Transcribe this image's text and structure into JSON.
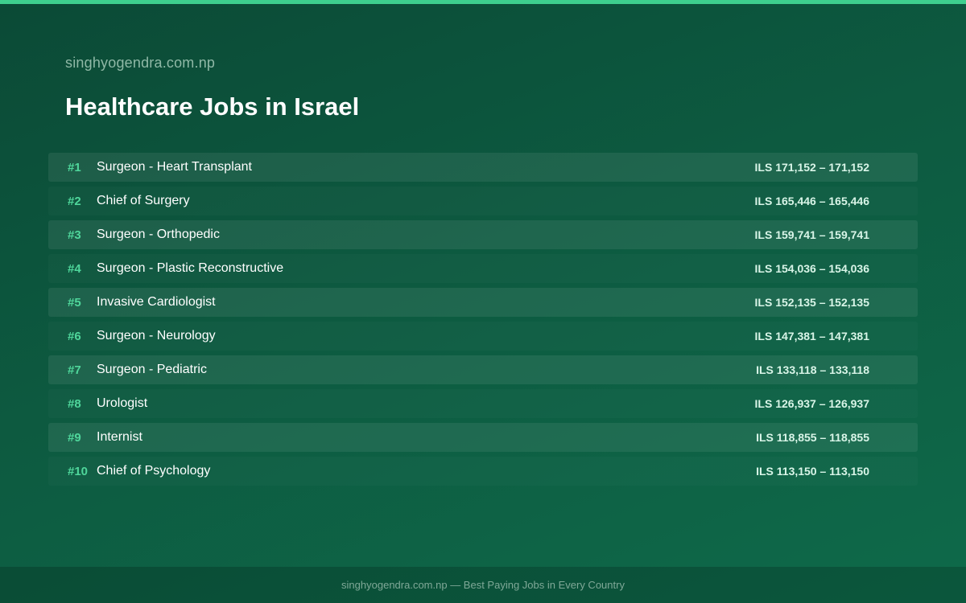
{
  "site_name": "singhyogendra.com.np",
  "title": "Healthcare Jobs in Israel",
  "jobs": [
    {
      "rank": "#1",
      "title": "Surgeon - Heart Transplant",
      "salary": "ILS 171,152 – 171,152"
    },
    {
      "rank": "#2",
      "title": "Chief of Surgery",
      "salary": "ILS 165,446 – 165,446"
    },
    {
      "rank": "#3",
      "title": "Surgeon - Orthopedic",
      "salary": "ILS 159,741 – 159,741"
    },
    {
      "rank": "#4",
      "title": "Surgeon - Plastic Reconstructive",
      "salary": "ILS 154,036 – 154,036"
    },
    {
      "rank": "#5",
      "title": "Invasive Cardiologist",
      "salary": "ILS 152,135 – 152,135"
    },
    {
      "rank": "#6",
      "title": "Surgeon - Neurology",
      "salary": "ILS 147,381 – 147,381"
    },
    {
      "rank": "#7",
      "title": "Surgeon - Pediatric",
      "salary": "ILS 133,118 – 133,118"
    },
    {
      "rank": "#8",
      "title": "Urologist",
      "salary": "ILS 126,937 – 126,937"
    },
    {
      "rank": "#9",
      "title": "Internist",
      "salary": "ILS 118,855 – 118,855"
    },
    {
      "rank": "#10",
      "title": "Chief of Psychology",
      "salary": "ILS 113,150 – 113,150"
    }
  ],
  "footer": "singhyogendra.com.np — Best Paying Jobs in Every Country",
  "colors": {
    "accent": "#3ecf8e",
    "rank": "#4fd69b",
    "background_start": "#0b4a36",
    "background_end": "#0e6a4a"
  }
}
